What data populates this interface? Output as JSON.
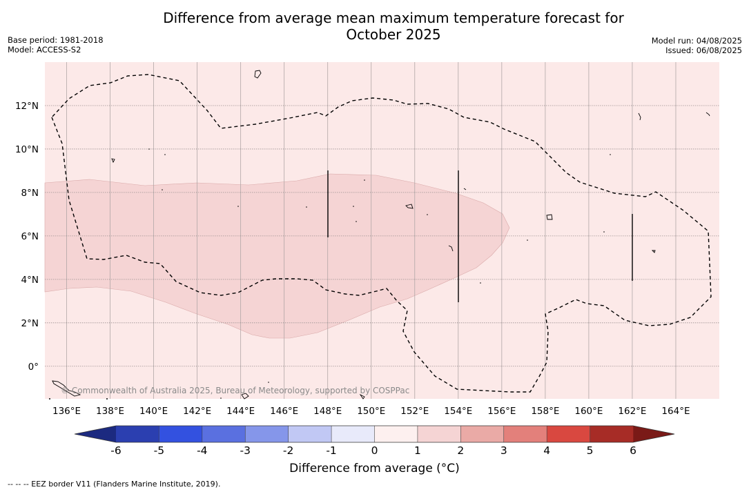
{
  "title_line1": "Difference from average mean maximum temperature forecast for",
  "title_line2": "October 2025",
  "meta": {
    "base_period": "Base period: 1981-2018",
    "model": "Model: ACCESS-S2",
    "model_run": "Model run: 04/08/2025",
    "issued": "Issued: 06/08/2025"
  },
  "map": {
    "lon_range": [
      135,
      166
    ],
    "lat_range": [
      -1.5,
      14
    ],
    "lon_ticks": [
      "136°E",
      "138°E",
      "140°E",
      "142°E",
      "144°E",
      "146°E",
      "148°E",
      "150°E",
      "152°E",
      "154°E",
      "156°E",
      "158°E",
      "160°E",
      "162°E",
      "164°E"
    ],
    "lat_ticks": [
      "0°",
      "2°N",
      "4°N",
      "6°N",
      "8°N",
      "10°N",
      "12°N"
    ],
    "background_category": "0 to 1",
    "background_color": "#fce9e8",
    "anomaly_region_category": "1 to 2",
    "anomaly_region_color": "#f5d4d4",
    "copyright": "© Commonwealth of Australia 2025, Bureau of Meteorology, supported by COSPPac"
  },
  "colorbar": {
    "title": "Difference from average (°C)",
    "tick_labels": [
      "-6",
      "-5",
      "-4",
      "-3",
      "-2",
      "-1",
      "0",
      "1",
      "2",
      "3",
      "4",
      "5",
      "6"
    ],
    "colors": [
      "#2b3fb0",
      "#3351e0",
      "#5a70e0",
      "#8596ea",
      "#c1c8f4",
      "#e8eafa",
      "#fdf0ef",
      "#f5d4d4",
      "#eaaaa6",
      "#e3807b",
      "#d94840",
      "#a72c26"
    ],
    "under_color": "#1c2a80",
    "over_color": "#7a1a17"
  },
  "footnote": "--  --  -- EEZ border V11 (Flanders Marine Institute, 2019)."
}
